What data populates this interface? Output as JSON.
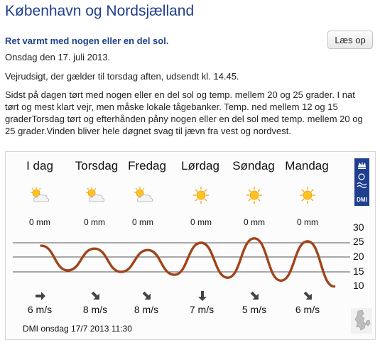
{
  "page": {
    "title": "København og Nordsjælland",
    "headline": "Ret varmt med nogen eller en del sol.",
    "read_button": "Læs op",
    "date": "Onsdag den 17. juli 2013.",
    "issued": "Vejrudsigt, der gælder til torsdag aften, udsendt kl. 14.45.",
    "forecast": "Sidst på dagen tørt med nogen eller en del sol og temp. mellem 20 og 25 grader. I nat tørt og mest klart vejr, men måske lokale tågebanker. Temp. ned mellem 12 og 15 graderTorsdag tørt og efterhånden påny nogen eller en del sol med temp. mellem 20 og 25 grader.Vinden bliver hele døgnet svag til jævn fra vest og nordvest."
  },
  "days": [
    {
      "name": "I dag",
      "precip": "0 mm",
      "wind": "6 m/s",
      "icon": "sun-cloud-icon",
      "wind_dir": "east"
    },
    {
      "name": "Torsdag",
      "precip": "0 mm",
      "wind": "8 m/s",
      "icon": "sun-cloud-icon",
      "wind_dir": "southeast"
    },
    {
      "name": "Fredag",
      "precip": "0 mm",
      "wind": "8 m/s",
      "icon": "sun-cloud-icon",
      "wind_dir": "southeast"
    },
    {
      "name": "Lørdag",
      "precip": "0 mm",
      "wind": "7 m/s",
      "icon": "sun-icon",
      "wind_dir": "south"
    },
    {
      "name": "Søndag",
      "precip": "0 mm",
      "wind": "5 m/s",
      "icon": "sun-icon",
      "wind_dir": "southeast"
    },
    {
      "name": "Mandag",
      "precip": "0 mm",
      "wind": "6 m/s",
      "icon": "sun-icon",
      "wind_dir": "southeast"
    }
  ],
  "badge": {
    "label": "DMI"
  },
  "footer": {
    "stamp": "DMI onsdag 17/7 2013  11:30"
  },
  "colors": {
    "title": "#1f3f8f",
    "temp_line": "#a0441a",
    "grid": "#555555"
  },
  "chart_data": {
    "type": "line",
    "title": "",
    "xlabel": "",
    "ylabel": "",
    "ylim": [
      10,
      30
    ],
    "yticks": [
      "30",
      "25",
      "20",
      "15",
      "10"
    ],
    "grid": true,
    "series": [
      {
        "x": [
          0.0,
          0.5,
          1.0,
          1.5,
          2.0,
          2.5,
          3.0,
          3.5,
          4.0,
          4.5,
          5.0,
          5.5
        ],
        "y": [
          24,
          15.5,
          23,
          15,
          22.5,
          14,
          25,
          13,
          26.5,
          12,
          25.5,
          10
        ]
      }
    ]
  }
}
